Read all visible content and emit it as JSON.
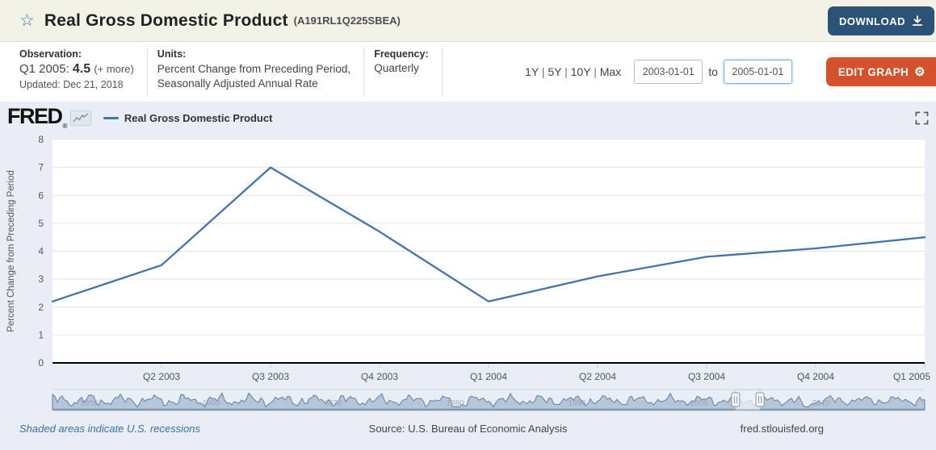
{
  "header": {
    "title": "Real Gross Domestic Product",
    "series_id": "(A191RL1Q225SBEA)",
    "download_label": "DOWNLOAD"
  },
  "meta": {
    "observation": {
      "label": "Observation:",
      "period": "Q1 2005:",
      "value": "4.5",
      "more_link": "(+ more)",
      "updated": "Updated: Dec 21, 2018"
    },
    "units": {
      "label": "Units:",
      "line1": "Percent Change from Preceding Period,",
      "line2": "Seasonally Adjusted Annual Rate"
    },
    "frequency": {
      "label": "Frequency:",
      "value": "Quarterly"
    },
    "ranges": [
      "1Y",
      "5Y",
      "10Y",
      "Max"
    ],
    "date_from": "2003-01-01",
    "to_label": "to",
    "date_to": "2005-01-01",
    "edit_graph_label": "EDIT GRAPH"
  },
  "graph": {
    "logo": "FRED",
    "logo_reg": "®",
    "legend_label": "Real Gross Domestic Product"
  },
  "icons": {
    "star": "☆",
    "gear": "⚙"
  },
  "colors": {
    "header_bg": "#f3f2e6",
    "chart_bg": "#e9eef4",
    "download_btn_bg": "#2b5277",
    "edit_graph_btn_bg": "#d4512b",
    "series_line": "#4572a7",
    "minimap_fill": "#b4c6da",
    "minimap_stroke": "#5f7fa4",
    "zero_axis": "#000000"
  },
  "chart_data": {
    "type": "line",
    "series_name": "Real Gross Domestic Product",
    "x": [
      "Q1 2003",
      "Q2 2003",
      "Q3 2003",
      "Q4 2003",
      "Q1 2004",
      "Q2 2004",
      "Q3 2004",
      "Q4 2004",
      "Q1 2005"
    ],
    "values": [
      2.2,
      3.5,
      7.0,
      4.7,
      2.2,
      3.1,
      3.8,
      4.1,
      4.5
    ],
    "x_tick_labels": [
      "Q2 2003",
      "Q3 2003",
      "Q4 2003",
      "Q1 2004",
      "Q2 2004",
      "Q3 2004",
      "Q4 2004",
      "Q1 2005"
    ],
    "ylabel": "Percent Change from Preceding Period",
    "ylim": [
      0,
      8
    ],
    "yticks": [
      0,
      1,
      2,
      3,
      4,
      5,
      6,
      7,
      8
    ],
    "grid": true,
    "legend_position": "top-left"
  },
  "minimap": {
    "decade_labels": [
      "1950",
      "1960",
      "1970",
      "1980",
      "1990",
      "2000",
      "2010"
    ],
    "full_range_years": [
      1947,
      2018.5
    ],
    "window_start_year": 2003,
    "window_end_year": 2005
  },
  "footer": {
    "recession_note": "Shaded areas indicate U.S. recessions",
    "source": "Source: U.S. Bureau of Economic Analysis",
    "site": "fred.stlouisfed.org"
  }
}
